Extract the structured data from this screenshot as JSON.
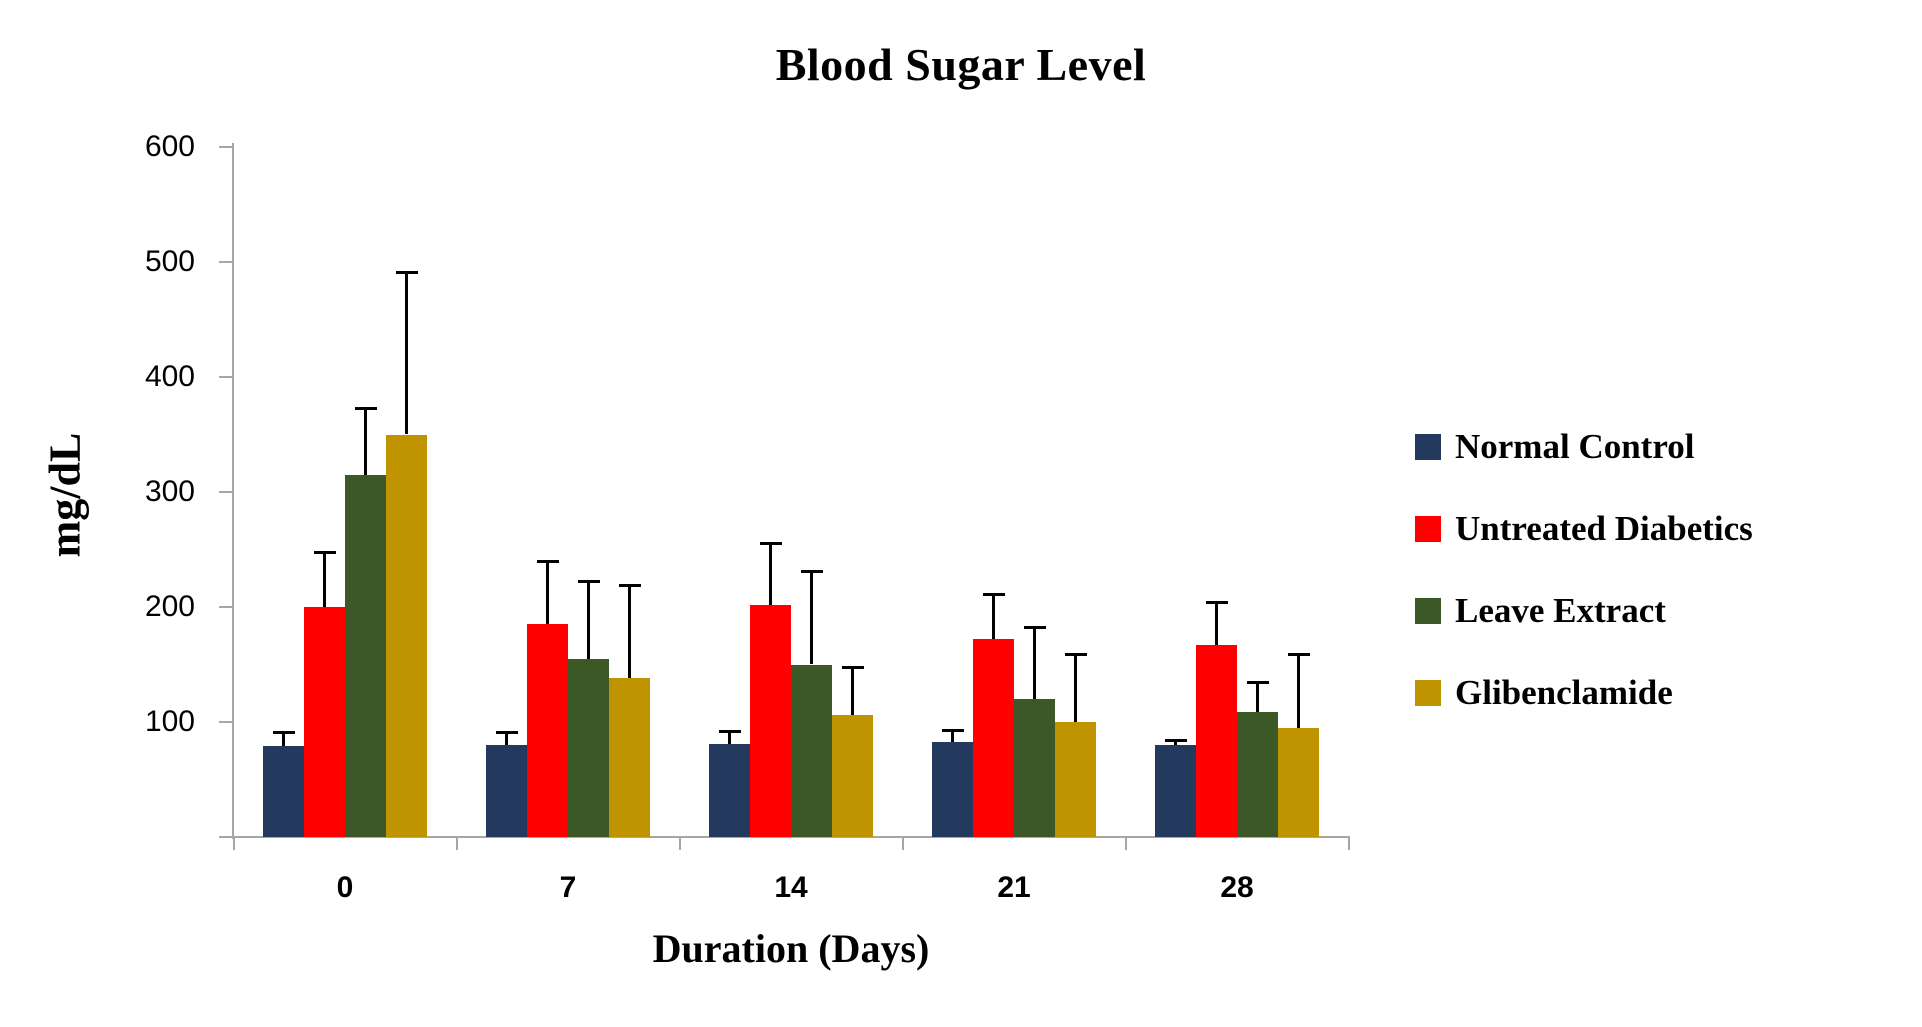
{
  "title": "Blood Sugar Level",
  "colors": {
    "background": "#FFFFFF",
    "axis_line": "#A6A6A6",
    "error_bar": "#000000",
    "text": "#000000",
    "series_navy": "#233A5E",
    "series_red": "#FE0000",
    "series_green": "#3B5826",
    "series_gold": "#C09300"
  },
  "chart_data": {
    "type": "bar",
    "title": "Blood Sugar Level",
    "xlabel": "Duration (Days)",
    "ylabel": "mg/dL",
    "categories": [
      "0",
      "7",
      "14",
      "21",
      "28"
    ],
    "ylim": [
      0,
      600
    ],
    "ytick_interval": 100,
    "yticks": [
      0,
      100,
      200,
      300,
      400,
      500,
      600
    ],
    "grid": false,
    "legend_position": "right",
    "error_bars": "upper_only",
    "series": [
      {
        "name": "Normal Control",
        "color": "#233A5E",
        "values": [
          79,
          80,
          81,
          83,
          80
        ],
        "errors": [
          12,
          11,
          11,
          10,
          4
        ]
      },
      {
        "name": "Untreated Diabetics",
        "color": "#FE0000",
        "values": [
          200,
          185,
          202,
          172,
          167
        ],
        "errors": [
          47,
          55,
          53,
          39,
          37
        ]
      },
      {
        "name": "Leave Extract",
        "color": "#3B5826",
        "values": [
          315,
          155,
          150,
          120,
          109
        ],
        "errors": [
          58,
          67,
          81,
          62,
          25
        ]
      },
      {
        "name": "Glibenclamide",
        "color": "#C09300",
        "values": [
          350,
          138,
          106,
          100,
          95
        ],
        "errors": [
          141,
          81,
          41,
          59,
          64
        ]
      }
    ]
  }
}
